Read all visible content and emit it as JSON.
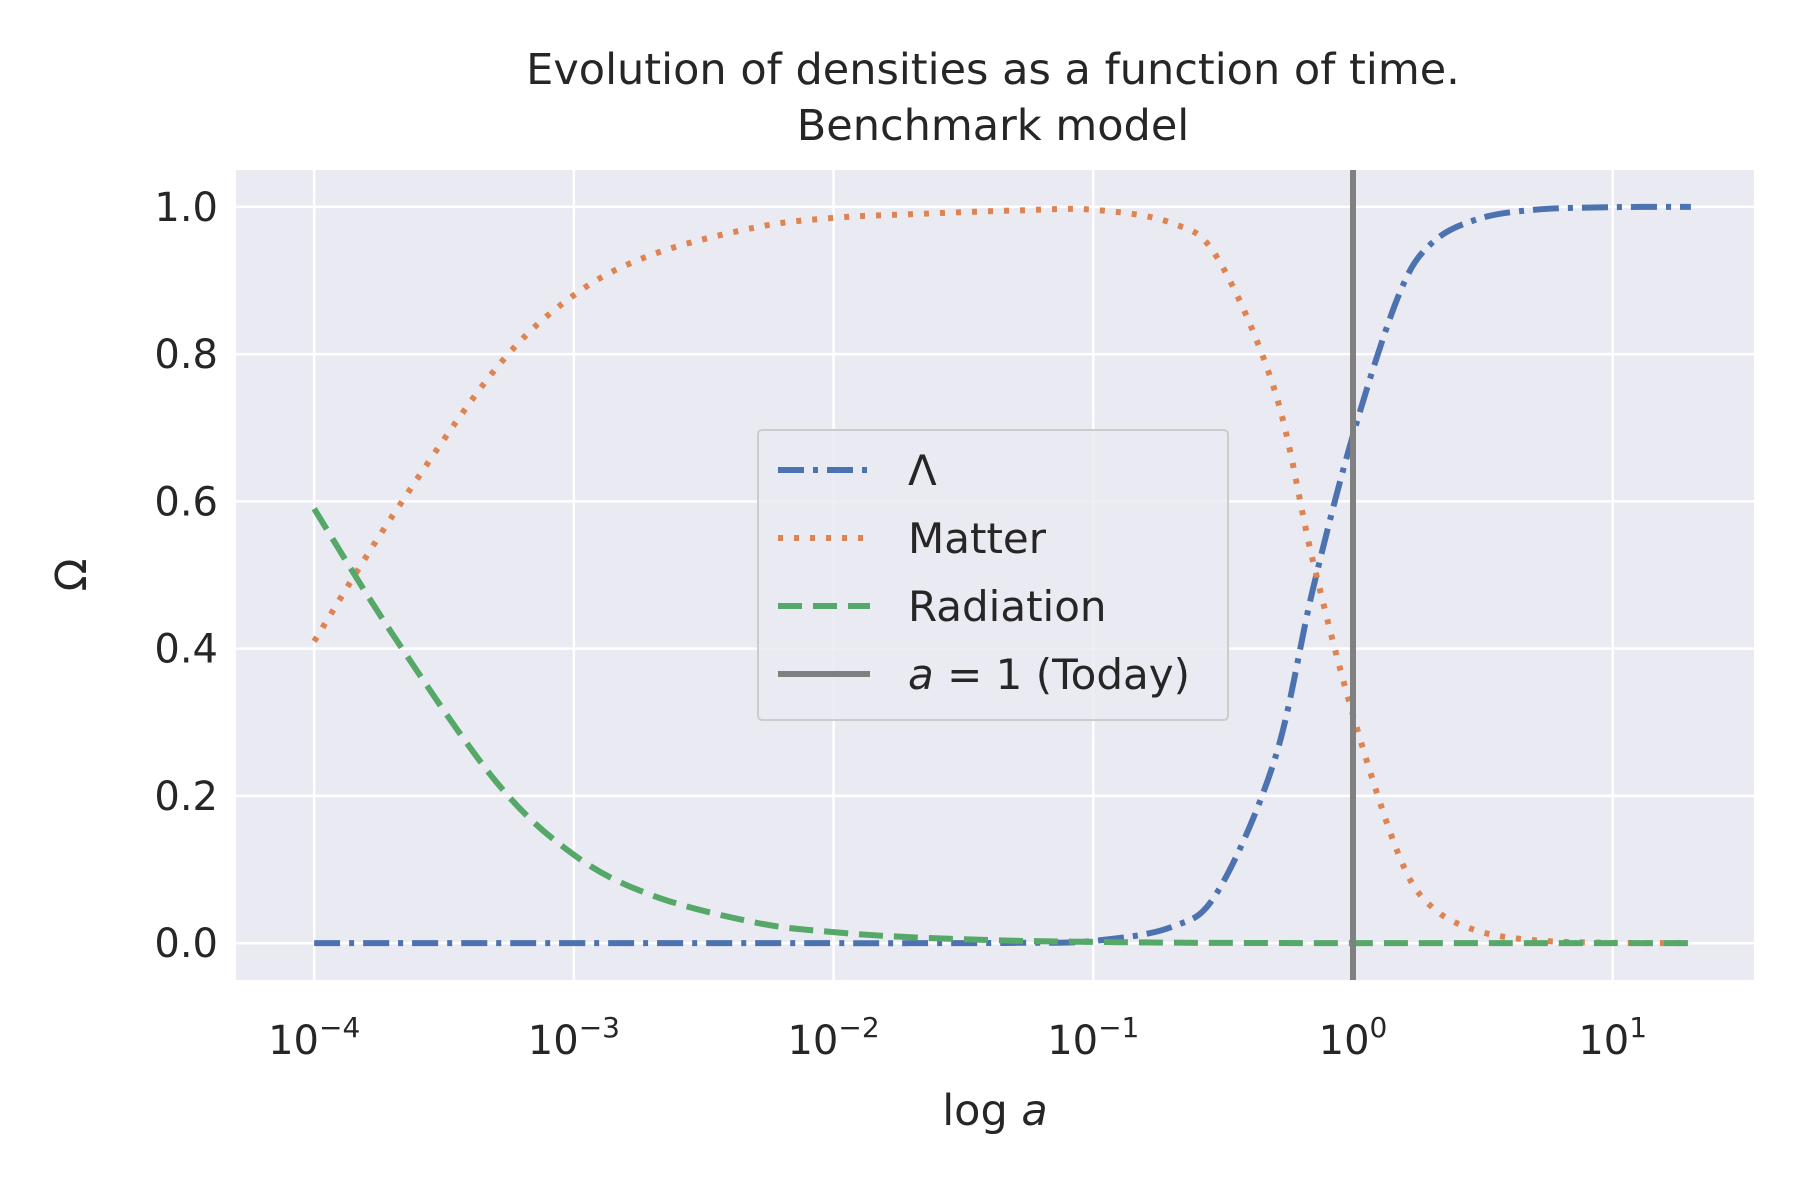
{
  "chart_data": {
    "type": "line",
    "title": "Evolution of densities as a function of time.",
    "subtitle": "Benchmark model",
    "xlabel": "log a",
    "ylabel": "Ω",
    "xscale": "log",
    "xlim": [
      5e-05,
      35
    ],
    "ylim": [
      -0.05,
      1.05
    ],
    "grid": true,
    "legend_position": "center",
    "x_ticks": [
      {
        "value": 0.0001,
        "base": "10",
        "exp": "−4"
      },
      {
        "value": 0.001,
        "base": "10",
        "exp": "−3"
      },
      {
        "value": 0.01,
        "base": "10",
        "exp": "−2"
      },
      {
        "value": 0.1,
        "base": "10",
        "exp": "−1"
      },
      {
        "value": 1,
        "base": "10",
        "exp": "0"
      },
      {
        "value": 10,
        "base": "10",
        "exp": "1"
      }
    ],
    "y_ticks": [
      {
        "value": 0.0,
        "label": "0.0"
      },
      {
        "value": 0.2,
        "label": "0.2"
      },
      {
        "value": 0.4,
        "label": "0.4"
      },
      {
        "value": 0.6,
        "label": "0.6"
      },
      {
        "value": 0.8,
        "label": "0.8"
      },
      {
        "value": 1.0,
        "label": "1.0"
      }
    ],
    "x": [
      0.0001,
      0.0002,
      0.0005,
      0.001,
      0.002,
      0.005,
      0.01,
      0.02,
      0.05,
      0.1,
      0.2,
      0.3,
      0.5,
      0.7,
      1,
      1.5,
      2,
      3,
      5,
      10,
      20
    ],
    "series": [
      {
        "name": "Λ",
        "color": "#4c72b0",
        "dash": "dashdot",
        "values": [
          0.0,
          0.0,
          0.0,
          0.0,
          0.0,
          0.0,
          0.0,
          0.0,
          0.0005,
          0.003,
          0.022,
          0.069,
          0.25,
          0.48,
          0.69,
          0.88,
          0.95,
          0.983,
          0.996,
          0.9995,
          1.0
        ]
      },
      {
        "name": "Matter",
        "color": "#dd8452",
        "dash": "dotted",
        "values": [
          0.41,
          0.58,
          0.78,
          0.88,
          0.935,
          0.972,
          0.985,
          0.99,
          0.995,
          0.996,
          0.978,
          0.931,
          0.75,
          0.52,
          0.31,
          0.12,
          0.05,
          0.017,
          0.004,
          0.0005,
          0.0001
        ]
      },
      {
        "name": "Radiation",
        "color": "#55a868",
        "dash": "dashed",
        "values": [
          0.59,
          0.42,
          0.22,
          0.12,
          0.065,
          0.028,
          0.015,
          0.008,
          0.0033,
          0.0017,
          0.0007,
          0.0004,
          0.0002,
          0.0001,
          0.0001,
          0.0,
          0.0,
          0.0,
          0.0,
          0.0,
          0.0
        ]
      }
    ],
    "vlines": [
      {
        "name": "a = 1 (Today)",
        "x": 1,
        "color": "#808080"
      }
    ],
    "legend": [
      {
        "label": "Λ",
        "style": "dashdot",
        "color": "#4c72b0"
      },
      {
        "label": "Matter",
        "style": "dotted",
        "color": "#dd8452"
      },
      {
        "label": "Radiation",
        "style": "dashed",
        "color": "#55a868"
      },
      {
        "label": "a = 1 (Today)",
        "style": "solid",
        "color": "#808080"
      }
    ]
  }
}
